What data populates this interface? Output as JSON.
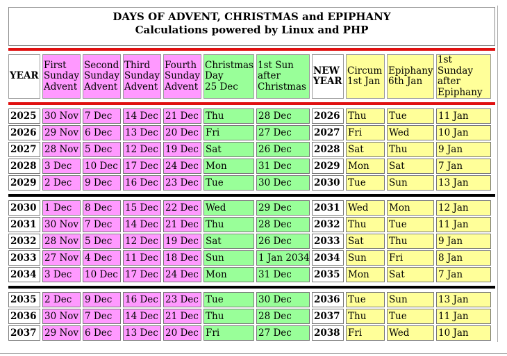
{
  "title": {
    "line1": "DAYS OF ADVENT, CHRISTMAS and EPIPHANY",
    "line2": "Calculations powered by Linux and PHP"
  },
  "colors": {
    "advent": "#ff99ff",
    "christmas": "#99ff99",
    "epiphany": "#ffff99",
    "separator_top": "#e01010",
    "separator_group": "#000000"
  },
  "headers": [
    "YEAR",
    "First Sunday Advent",
    "Second Sunday Advent",
    "Third Sunday Advent",
    "Fourth Sunday Advent",
    "Christmas Day 25 Dec",
    "1st Sun after Christmas",
    "NEW YEAR",
    "Circum 1st Jan",
    "Epiphany 6th Jan",
    "1st Sunday after Epiphany"
  ],
  "groups": [
    [
      [
        "2025",
        "30 Nov",
        "7 Dec",
        "14 Dec",
        "21 Dec",
        "Thu",
        "28 Dec",
        "2026",
        "Thu",
        "Tue",
        "11 Jan"
      ],
      [
        "2026",
        "29 Nov",
        "6 Dec",
        "13 Dec",
        "20 Dec",
        "Fri",
        "27 Dec",
        "2027",
        "Fri",
        "Wed",
        "10 Jan"
      ],
      [
        "2027",
        "28 Nov",
        "5 Dec",
        "12 Dec",
        "19 Dec",
        "Sat",
        "26 Dec",
        "2028",
        "Sat",
        "Thu",
        "9 Jan"
      ],
      [
        "2028",
        "3 Dec",
        "10 Dec",
        "17 Dec",
        "24 Dec",
        "Mon",
        "31 Dec",
        "2029",
        "Mon",
        "Sat",
        "7 Jan"
      ],
      [
        "2029",
        "2 Dec",
        "9 Dec",
        "16 Dec",
        "23 Dec",
        "Tue",
        "30 Dec",
        "2030",
        "Tue",
        "Sun",
        "13 Jan"
      ]
    ],
    [
      [
        "2030",
        "1 Dec",
        "8 Dec",
        "15 Dec",
        "22 Dec",
        "Wed",
        "29 Dec",
        "2031",
        "Wed",
        "Mon",
        "12 Jan"
      ],
      [
        "2031",
        "30 Nov",
        "7 Dec",
        "14 Dec",
        "21 Dec",
        "Thu",
        "28 Dec",
        "2032",
        "Thu",
        "Tue",
        "11 Jan"
      ],
      [
        "2032",
        "28 Nov",
        "5 Dec",
        "12 Dec",
        "19 Dec",
        "Sat",
        "26 Dec",
        "2033",
        "Sat",
        "Thu",
        "9 Jan"
      ],
      [
        "2033",
        "27 Nov",
        "4 Dec",
        "11 Dec",
        "18 Dec",
        "Sun",
        "1 Jan 2034",
        "2034",
        "Sun",
        "Fri",
        "8 Jan"
      ],
      [
        "2034",
        "3 Dec",
        "10 Dec",
        "17 Dec",
        "24 Dec",
        "Mon",
        "31 Dec",
        "2035",
        "Mon",
        "Sat",
        "7 Jan"
      ]
    ],
    [
      [
        "2035",
        "2 Dec",
        "9 Dec",
        "16 Dec",
        "23 Dec",
        "Tue",
        "30 Dec",
        "2036",
        "Tue",
        "Sun",
        "13 Jan"
      ],
      [
        "2036",
        "30 Nov",
        "7 Dec",
        "14 Dec",
        "21 Dec",
        "Thu",
        "28 Dec",
        "2037",
        "Thu",
        "Tue",
        "11 Jan"
      ],
      [
        "2037",
        "29 Nov",
        "6 Dec",
        "13 Dec",
        "20 Dec",
        "Fri",
        "27 Dec",
        "2038",
        "Fri",
        "Wed",
        "10 Jan"
      ]
    ]
  ]
}
